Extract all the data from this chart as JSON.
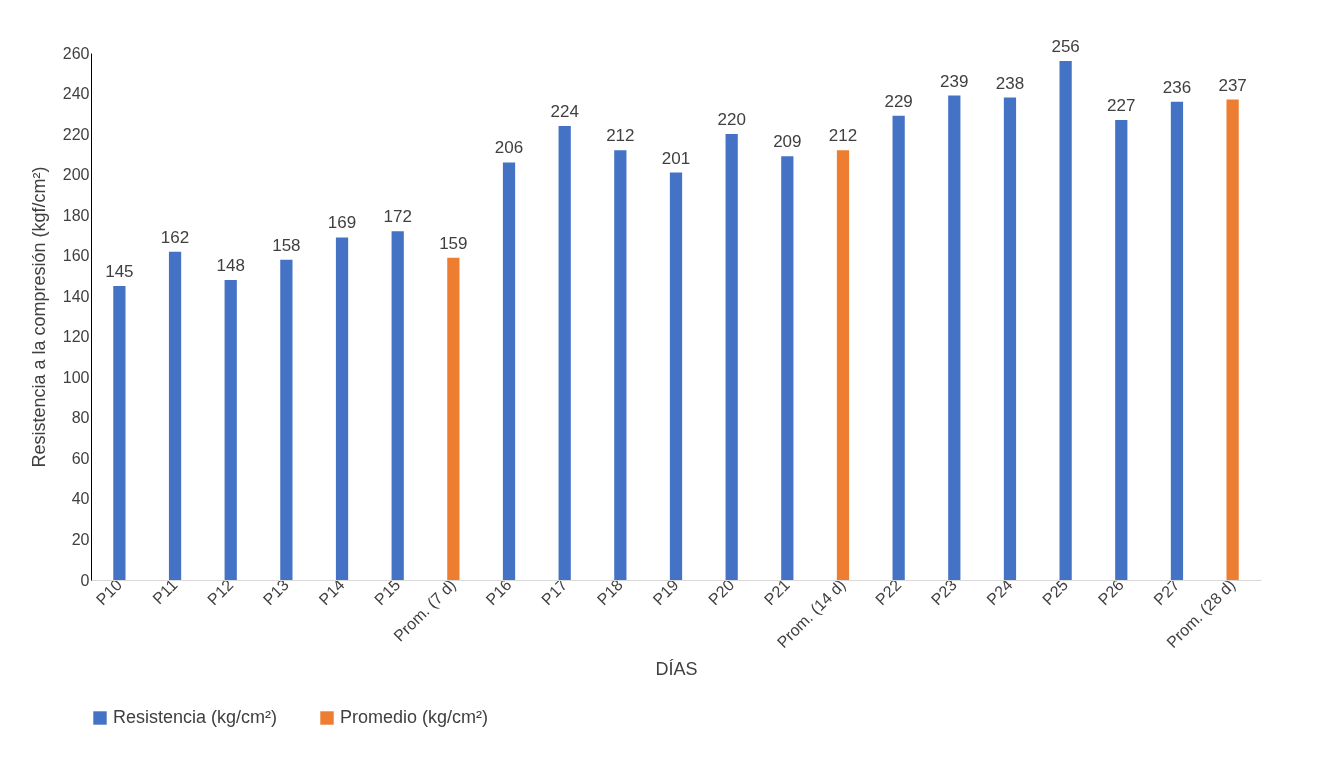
{
  "chart_data": {
    "type": "bar",
    "xlabel": "DÍAS",
    "ylabel": "Resistencia a la compresión (kgf/cm²)",
    "categories": [
      "P10",
      "P11",
      "P12",
      "P13",
      "P14",
      "P15",
      "Prom. (7 d)",
      "P16",
      "P17",
      "P18",
      "P19",
      "P20",
      "P21",
      "Prom. (14 d)",
      "P22",
      "P23",
      "P24",
      "P25",
      "P26",
      "P27",
      "Prom. (28 d)"
    ],
    "series": [
      {
        "name": "Resistencia (kg/cm²)",
        "color": "#4472c4",
        "values": [
          145,
          162,
          148,
          158,
          169,
          172,
          null,
          206,
          224,
          212,
          201,
          220,
          209,
          null,
          229,
          239,
          238,
          256,
          227,
          236,
          null
        ]
      },
      {
        "name": "Promedio (kg/cm²)",
        "color": "#ed7d31",
        "values": [
          null,
          null,
          null,
          null,
          null,
          null,
          159,
          null,
          null,
          null,
          null,
          null,
          null,
          212,
          null,
          null,
          null,
          null,
          null,
          null,
          237
        ]
      }
    ],
    "ylim": [
      0,
      260
    ],
    "yticks": [
      0,
      20,
      40,
      60,
      80,
      100,
      120,
      140,
      160,
      180,
      200,
      220,
      240,
      260
    ],
    "grid": false,
    "legend": "bottom",
    "data_labels": true
  }
}
